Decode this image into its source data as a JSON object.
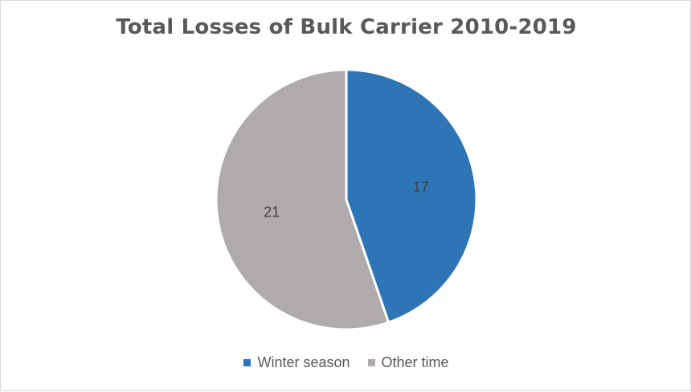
{
  "chart_data": {
    "type": "pie",
    "title": "Total Losses of Bulk Carrier 2010-2019",
    "slices": [
      {
        "label": "Winter season",
        "value": 17,
        "color": "#2e75b6"
      },
      {
        "label": "Other time",
        "value": 21,
        "color": "#afabab"
      }
    ],
    "legend_placement": "bottom",
    "data_labels": true
  }
}
